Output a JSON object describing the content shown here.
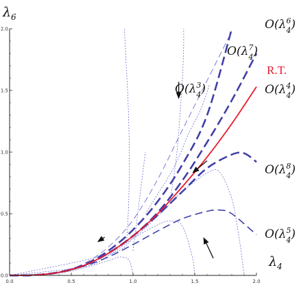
{
  "chart_data": {
    "type": "line",
    "xlabel": "λ",
    "xlabel_sub": "4",
    "ylabel": "λ",
    "ylabel_sub": "6",
    "xlim": [
      0,
      2
    ],
    "ylim": [
      0,
      2
    ],
    "x_ticks": [
      "0.0",
      "0.5",
      "1.0",
      "1.5",
      "2.0"
    ],
    "y_ticks": [
      "0.0",
      "0.5",
      "1.0",
      "1.5",
      "2.0"
    ],
    "grid": false,
    "colors": {
      "rt": "#e8192c",
      "thick": "#3f3fa8",
      "thin": "#5a5ac8",
      "axis": "#222222"
    },
    "annotations": [
      {
        "id": "o6",
        "text": "O(λ",
        "sup": "6",
        "sub": "4",
        "close": ")"
      },
      {
        "id": "o7",
        "text": "O(λ",
        "sup": "7",
        "sub": "4",
        "close": ")"
      },
      {
        "id": "o3",
        "text": "O(λ",
        "sup": "3",
        "sub": "4",
        "close": ")"
      },
      {
        "id": "o4",
        "text": "O(λ",
        "sup": "4",
        "sub": "4",
        "close": ")"
      },
      {
        "id": "o8",
        "text": "O(λ",
        "sup": "8",
        "sub": "4",
        "close": ")"
      },
      {
        "id": "o5",
        "text": "O(λ",
        "sup": "5",
        "sub": "4",
        "close": ")"
      }
    ],
    "rt_label": "R.T.",
    "series": [
      {
        "id": "rt",
        "style": "solid-red",
        "x": [
          0,
          0.2,
          0.4,
          0.6,
          0.8,
          1.0,
          1.2,
          1.4,
          1.6,
          1.8,
          2.0
        ],
        "y": [
          0,
          0.003,
          0.025,
          0.08,
          0.18,
          0.32,
          0.5,
          0.72,
          0.96,
          1.23,
          1.53
        ]
      },
      {
        "id": "o6",
        "style": "thick-dashed",
        "x": [
          0,
          0.2,
          0.4,
          0.6,
          0.8,
          1.0,
          1.2,
          1.4,
          1.6,
          1.8
        ],
        "y": [
          0,
          0.003,
          0.026,
          0.085,
          0.2,
          0.37,
          0.6,
          0.9,
          1.3,
          2.0
        ]
      },
      {
        "id": "o7",
        "style": "thin-dashed",
        "x": [
          0,
          0.2,
          0.4,
          0.6,
          0.8,
          1.0,
          1.2,
          1.4,
          1.6,
          1.8
        ],
        "y": [
          0,
          0.003,
          0.028,
          0.095,
          0.23,
          0.45,
          0.78,
          1.18,
          1.58,
          1.98
        ]
      },
      {
        "id": "o4",
        "style": "thick-dashed",
        "x": [
          0,
          0.2,
          0.4,
          0.6,
          0.8,
          1.0,
          1.2,
          1.4,
          1.6,
          1.8,
          2.0
        ],
        "y": [
          0,
          0.003,
          0.025,
          0.08,
          0.18,
          0.32,
          0.51,
          0.77,
          1.08,
          1.42,
          1.8
        ]
      },
      {
        "id": "o8",
        "style": "thick-dashed",
        "x": [
          0,
          0.2,
          0.4,
          0.6,
          0.8,
          1.0,
          1.2,
          1.4,
          1.6,
          1.8,
          1.9,
          2.0
        ],
        "y": [
          0,
          0.003,
          0.025,
          0.08,
          0.18,
          0.32,
          0.49,
          0.68,
          0.87,
          0.98,
          0.99,
          0.92
        ]
      },
      {
        "id": "o5",
        "style": "medium-dashed",
        "x": [
          0,
          0.2,
          0.4,
          0.6,
          0.8,
          1.0,
          1.2,
          1.4,
          1.6,
          1.7,
          1.8,
          2.0
        ],
        "y": [
          0,
          0.003,
          0.024,
          0.074,
          0.15,
          0.25,
          0.36,
          0.46,
          0.52,
          0.53,
          0.5,
          0.33
        ]
      },
      {
        "id": "o3a",
        "style": "dotted",
        "x": [
          0,
          0.4,
          0.6,
          0.8,
          0.9,
          0.97,
          1.0
        ],
        "y": [
          0,
          0.02,
          0.06,
          0.12,
          0.15,
          0.12,
          0
        ]
      },
      {
        "id": "o3b",
        "style": "dotted",
        "x": [
          0,
          0.6,
          0.8,
          1.0,
          1.2,
          1.3,
          1.4,
          1.48,
          1.5
        ],
        "y": [
          0,
          0.07,
          0.16,
          0.3,
          0.41,
          0.44,
          0.4,
          0.15,
          0
        ]
      },
      {
        "id": "o3c",
        "style": "dotted",
        "x": [
          0,
          0.8,
          1.0,
          1.2,
          1.4,
          1.6,
          1.7,
          1.8,
          1.86,
          1.9
        ],
        "y": [
          0,
          0.17,
          0.3,
          0.48,
          0.68,
          0.83,
          0.84,
          0.62,
          0.3,
          0
        ]
      },
      {
        "id": "o3d",
        "style": "dotted",
        "x": [
          0.95,
          0.965,
          0.97,
          0.96,
          0.945,
          0.935,
          0.93
        ],
        "y": [
          0.3,
          0.6,
          1.0,
          1.4,
          1.7,
          1.9,
          2.0
        ]
      },
      {
        "id": "o3e",
        "style": "dotted",
        "x": [
          1.0,
          1.02,
          1.05,
          1.1
        ],
        "y": [
          0.2,
          0.35,
          0.6,
          1.0
        ]
      },
      {
        "id": "o3f",
        "style": "dotted",
        "x": [
          1.3,
          1.35,
          1.38,
          1.4,
          1.41,
          1.41
        ],
        "y": [
          0.6,
          0.95,
          1.3,
          1.6,
          1.85,
          2.0
        ]
      },
      {
        "id": "o3g",
        "style": "dotted",
        "x": [
          1.1,
          1.2,
          1.3,
          1.38,
          1.45,
          1.55,
          1.62
        ],
        "y": [
          0.5,
          0.66,
          0.82,
          0.98,
          1.15,
          1.35,
          1.55
        ]
      }
    ],
    "arrows": [
      {
        "id": "arrow-down",
        "x1": 1.37,
        "y1": 1.57,
        "x2": 1.37,
        "y2": 1.43
      },
      {
        "id": "arrow-rt",
        "x1": 1.6,
        "y1": 0.93,
        "x2": 1.48,
        "y2": 0.83
      },
      {
        "id": "arrow-thick",
        "x1": 0.77,
        "y1": 0.31,
        "x2": 0.71,
        "y2": 0.27
      },
      {
        "id": "arrow-up",
        "x1": 1.65,
        "y1": 0.14,
        "x2": 1.57,
        "y2": 0.31
      }
    ]
  }
}
